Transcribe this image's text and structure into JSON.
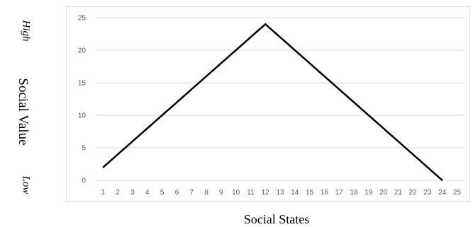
{
  "chart_data": {
    "type": "line",
    "xlabel": "Social States",
    "ylabel": "Social Value",
    "y_high_label": "High",
    "y_low_label": "Low",
    "x_categories": [
      1,
      2,
      3,
      4,
      5,
      6,
      7,
      8,
      9,
      10,
      11,
      12,
      13,
      14,
      15,
      16,
      17,
      18,
      19,
      20,
      21,
      22,
      23,
      24,
      25
    ],
    "ylim": [
      0,
      25
    ],
    "y_ticks": [
      0,
      5,
      10,
      15,
      20,
      25
    ],
    "grid": true,
    "series": [
      {
        "x": [
          1,
          12,
          24
        ],
        "values": [
          2,
          24,
          0
        ],
        "color": "#000000"
      }
    ]
  }
}
